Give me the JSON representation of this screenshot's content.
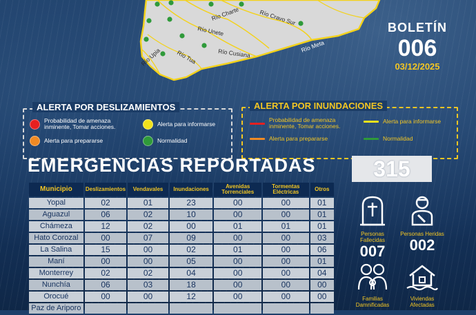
{
  "map": {
    "rivers": [
      "Río Charte",
      "Río Unete",
      "Río Cravo Sur",
      "Río Cusiana",
      "Río Tua",
      "Río Upia",
      "Río Meta"
    ]
  },
  "bulletin": {
    "label": "BOLETÍN",
    "number": "006",
    "date": "03/12/2025"
  },
  "landslide_alert": {
    "title": "ALERTA POR DESLIZAMIENTOS",
    "items": [
      {
        "label": "Probabilidad de amenaza inminente, Tomar acciones.",
        "color": "#e82020"
      },
      {
        "label": "Alerta para informarse",
        "color": "#f2e21c"
      },
      {
        "label": "Alerta para prepararse",
        "color": "#f08a24"
      },
      {
        "label": "Normalidad",
        "color": "#2f9a3a"
      }
    ]
  },
  "flood_alert": {
    "title": "ALERTA POR INUNDACIONES",
    "items": [
      {
        "label": "Probabilidad de amenaza inminente, Tomar acciones.",
        "color": "#e82020"
      },
      {
        "label": "Alerta para informarse",
        "color": "#f2e21c"
      },
      {
        "label": "Alerta para prepararse",
        "color": "#f08a24"
      },
      {
        "label": "Normalidad",
        "color": "#2f9a3a"
      }
    ]
  },
  "emergencies": {
    "title": "EMERGENCIAS REPORTADAS",
    "total": "315",
    "columns": [
      "Municipio",
      "Deslizamientos",
      "Vendavales",
      "Inundaciones",
      "Avenidas Torrenciales",
      "Tormentas Eléctricas",
      "Otros"
    ],
    "rows": [
      [
        "Yopal",
        "02",
        "01",
        "23",
        "00",
        "00",
        "01"
      ],
      [
        "Aguazul",
        "06",
        "02",
        "10",
        "00",
        "00",
        "01"
      ],
      [
        "Chámeza",
        "12",
        "02",
        "00",
        "01",
        "01",
        "01"
      ],
      [
        "Hato Corozal",
        "00",
        "07",
        "09",
        "00",
        "00",
        "03"
      ],
      [
        "La Salina",
        "15",
        "00",
        "02",
        "01",
        "00",
        "06"
      ],
      [
        "Maní",
        "00",
        "00",
        "05",
        "00",
        "00",
        "01"
      ],
      [
        "Monterrey",
        "02",
        "02",
        "04",
        "00",
        "00",
        "04"
      ],
      [
        "Nunchía",
        "06",
        "03",
        "18",
        "00",
        "00",
        "00"
      ],
      [
        "Orocué",
        "00",
        "00",
        "12",
        "00",
        "00",
        "00"
      ],
      [
        "Paz de Ariporo",
        "",
        "",
        "",
        "",
        "",
        ""
      ]
    ]
  },
  "stats": {
    "deceased_label": "Personas Fallecidas",
    "deceased_value": "007",
    "injured_label": "Personas Heridas",
    "injured_value": "002",
    "families_label": "Familias Damnificadas",
    "homes_label": "Viviendas Afectadas"
  }
}
